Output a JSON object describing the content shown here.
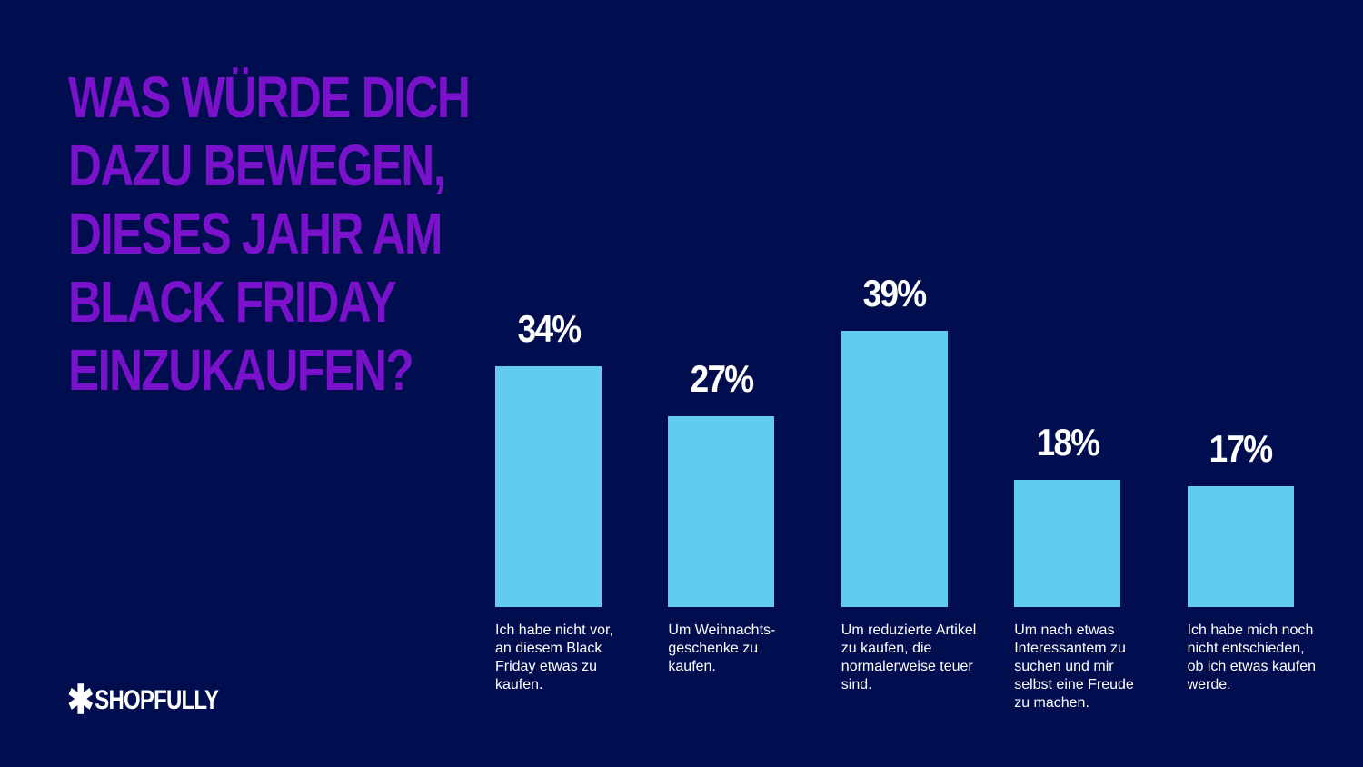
{
  "chart_data": {
    "type": "bar",
    "title_lines": [
      "WAS WÜRDE DICH",
      "DAZU BEWEGEN,",
      "DIESES JAHR AM",
      "BLACK FRIDAY",
      "EINZUKAUFEN?"
    ],
    "categories": [
      "Ich habe nicht vor, an diesem Black Friday etwas zu kaufen.",
      "Um Weihnachts-geschenke zu kaufen.",
      "Um reduzierte Artikel zu kaufen, die normalerweise teuer sind.",
      "Um nach etwas Interessantem zu suchen und mir selbst eine Freude zu machen.",
      "Ich habe mich noch nicht entschieden, ob ich etwas kaufen werde."
    ],
    "values": [
      34,
      27,
      39,
      18,
      17
    ],
    "data_labels": [
      "34%",
      "27%",
      "39%",
      "18%",
      "17%"
    ],
    "unit": "%",
    "ylim": [
      0,
      39
    ],
    "grid": false,
    "colors": {
      "background": "#000d4f",
      "title": "#7a12cc",
      "bar": "#62cbf0",
      "text": "#ffffff"
    }
  },
  "logo": {
    "text": "SHOPFULLY",
    "icon": "asterisk-icon"
  }
}
